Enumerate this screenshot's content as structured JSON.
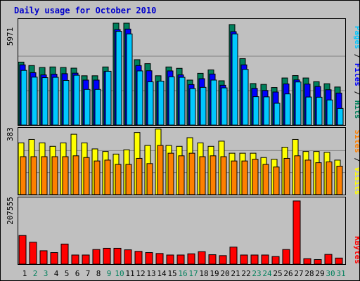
{
  "title": "Daily usage for October 2010",
  "colors": {
    "hits": "#00805c",
    "files": "#0000ff",
    "pages": "#00c8ff",
    "visits": "#ffff00",
    "sites": "#ff8000",
    "kbytes": "#ff0000",
    "weekday_label": "#000000",
    "weekend_label": "#00805c"
  },
  "chart_data": [
    {
      "type": "bar",
      "panel": "hits-files-pages",
      "legend": [
        "Pages",
        "Files",
        "Hits"
      ],
      "ytick_label": "5971",
      "ylim": [
        0,
        5971
      ],
      "categories": [
        "1",
        "2",
        "3",
        "4",
        "5",
        "6",
        "7",
        "8",
        "9",
        "10",
        "11",
        "12",
        "13",
        "14",
        "15",
        "16",
        "17",
        "18",
        "19",
        "20",
        "21",
        "22",
        "23",
        "24",
        "25",
        "26",
        "27",
        "28",
        "29",
        "30",
        "31"
      ],
      "series": [
        {
          "name": "Hits",
          "values": [
            3640,
            3440,
            3330,
            3360,
            3330,
            3290,
            2850,
            2850,
            3360,
            5890,
            5890,
            3780,
            3550,
            2850,
            3360,
            3280,
            2600,
            2990,
            3190,
            2560,
            5810,
            3840,
            2400,
            2350,
            2170,
            2720,
            2860,
            2720,
            2510,
            2390,
            2200
          ]
        },
        {
          "name": "Files",
          "values": [
            3480,
            3030,
            2900,
            2940,
            2970,
            3000,
            2600,
            2600,
            3100,
            5520,
            5550,
            3440,
            3140,
            2520,
            3130,
            2900,
            2340,
            2680,
            2950,
            2300,
            5400,
            3480,
            2120,
            2000,
            1910,
            2380,
            2610,
            2370,
            2230,
            2040,
            1850
          ]
        },
        {
          "name": "Pages",
          "values": [
            3160,
            2770,
            2740,
            2760,
            2580,
            2880,
            2060,
            2060,
            3110,
            5420,
            5270,
            3130,
            2500,
            2540,
            2790,
            2760,
            2110,
            2180,
            2600,
            2150,
            5270,
            3220,
            1640,
            1630,
            1260,
            1800,
            2490,
            1620,
            1610,
            1450,
            960
          ]
        }
      ]
    },
    {
      "type": "bar",
      "panel": "visits-sites",
      "legend": [
        "Sites",
        "Visits"
      ],
      "ytick_label": "383",
      "ylim": [
        0,
        383
      ],
      "categories": [
        "1",
        "2",
        "3",
        "4",
        "5",
        "6",
        "7",
        "8",
        "9",
        "10",
        "11",
        "12",
        "13",
        "14",
        "15",
        "16",
        "17",
        "18",
        "19",
        "20",
        "21",
        "22",
        "23",
        "24",
        "25",
        "26",
        "27",
        "28",
        "29",
        "30",
        "31"
      ],
      "series": [
        {
          "name": "Visits",
          "values": [
            300,
            320,
            300,
            280,
            300,
            350,
            300,
            265,
            250,
            235,
            260,
            360,
            285,
            380,
            285,
            280,
            330,
            300,
            280,
            310,
            240,
            240,
            240,
            215,
            205,
            275,
            320,
            250,
            250,
            245,
            200
          ]
        },
        {
          "name": "Sites",
          "values": [
            220,
            220,
            220,
            220,
            220,
            225,
            215,
            195,
            200,
            175,
            175,
            210,
            180,
            285,
            240,
            225,
            240,
            220,
            225,
            220,
            195,
            195,
            205,
            175,
            160,
            210,
            225,
            200,
            185,
            190,
            165
          ]
        }
      ]
    },
    {
      "type": "bar",
      "panel": "kbytes",
      "legend": [
        "KBytes"
      ],
      "ytick_label": "207555",
      "ylim": [
        0,
        207555
      ],
      "categories": [
        "1",
        "2",
        "3",
        "4",
        "5",
        "6",
        "7",
        "8",
        "9",
        "10",
        "11",
        "12",
        "13",
        "14",
        "15",
        "16",
        "17",
        "18",
        "19",
        "20",
        "21",
        "22",
        "23",
        "24",
        "25",
        "26",
        "27",
        "28",
        "29",
        "30",
        "31"
      ],
      "series": [
        {
          "name": "KBytes",
          "values": [
            94000,
            72000,
            44000,
            38000,
            66000,
            30000,
            30000,
            48000,
            52000,
            52000,
            47000,
            42000,
            38000,
            35000,
            30000,
            30000,
            34000,
            41000,
            31000,
            28000,
            56000,
            30000,
            30000,
            30000,
            25000,
            48000,
            207555,
            18000,
            15000,
            32000,
            20000
          ]
        }
      ]
    }
  ]
}
